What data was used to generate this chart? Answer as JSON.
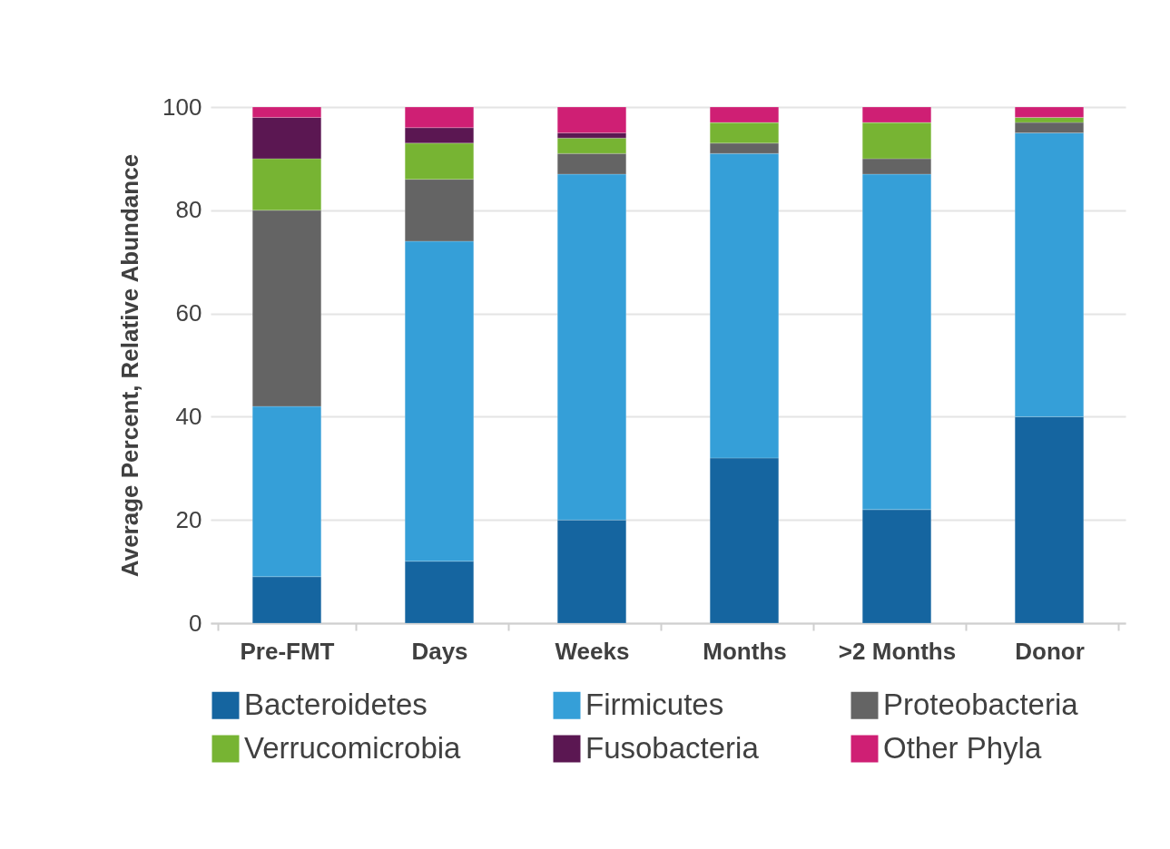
{
  "chart_data": {
    "type": "bar",
    "stacked": true,
    "ylabel": "Average Percent, Relative Abundance",
    "categories": [
      "Pre-FMT",
      "Days",
      "Weeks",
      "Months",
      ">2 Months",
      "Donor"
    ],
    "series": [
      {
        "name": "Bacteroidetes",
        "color": "#1565a0",
        "values": [
          9,
          12,
          20,
          32,
          22,
          40
        ]
      },
      {
        "name": "Firmicutes",
        "color": "#359fd8",
        "values": [
          33,
          62,
          67,
          59,
          65,
          55
        ]
      },
      {
        "name": "Proteobacteria",
        "color": "#646464",
        "values": [
          38,
          12,
          4,
          2,
          3,
          2
        ]
      },
      {
        "name": "Verrucomicrobia",
        "color": "#77b433",
        "values": [
          10,
          7,
          3,
          4,
          7,
          1
        ]
      },
      {
        "name": "Fusobacteria",
        "color": "#5b1752",
        "values": [
          8,
          3,
          1,
          0,
          0,
          0
        ]
      },
      {
        "name": "Other Phyla",
        "color": "#cf1f74",
        "values": [
          2,
          4,
          5,
          3,
          3,
          2
        ]
      }
    ],
    "ylim": [
      0,
      100
    ],
    "yticks": [
      0,
      20,
      40,
      60,
      80,
      100
    ],
    "grid": "y",
    "legend": "bottom"
  }
}
